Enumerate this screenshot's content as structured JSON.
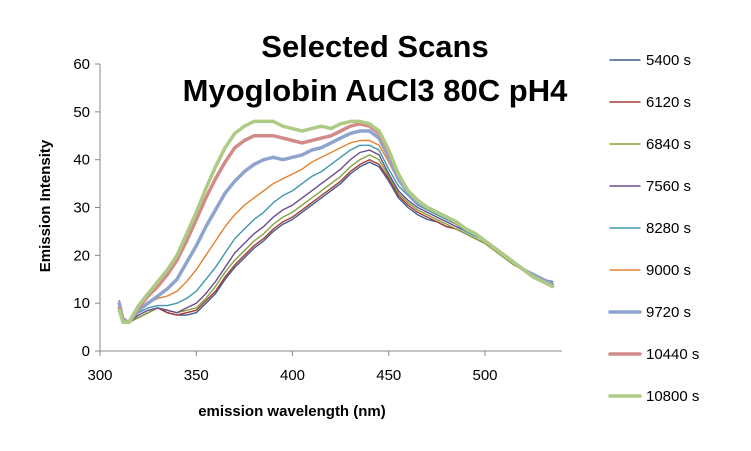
{
  "chart_data": {
    "type": "line",
    "title_lines": [
      "Selected Scans",
      "Myoglobin AuCl3 80C pH4"
    ],
    "xlabel": "emission wavelength (nm)",
    "ylabel": "Emission Intensity",
    "xlim": [
      300,
      540
    ],
    "ylim": [
      0,
      60
    ],
    "x_ticks": [
      300,
      350,
      400,
      450,
      500
    ],
    "y_ticks": [
      0,
      10,
      20,
      30,
      40,
      50,
      60
    ],
    "grid": false,
    "legend_position": "right",
    "x": [
      310,
      312,
      315,
      320,
      325,
      330,
      335,
      340,
      345,
      350,
      355,
      360,
      365,
      370,
      375,
      380,
      385,
      390,
      395,
      400,
      405,
      410,
      415,
      420,
      425,
      430,
      435,
      440,
      445,
      450,
      455,
      460,
      465,
      470,
      475,
      480,
      485,
      490,
      495,
      500,
      505,
      510,
      515,
      520,
      525,
      530,
      535
    ],
    "series": [
      {
        "name": "5400 s",
        "color": "#3F5E8F",
        "values": [
          10.5,
          7,
          6,
          7,
          8,
          9,
          8,
          7.5,
          7.5,
          8,
          10,
          12,
          15,
          17.5,
          19.5,
          21.5,
          23,
          25,
          26.5,
          27.5,
          29,
          30.5,
          32,
          33.5,
          35,
          37,
          38.5,
          39.5,
          38.5,
          35.5,
          32,
          30,
          28.5,
          27.5,
          27,
          26,
          25.5,
          24.5,
          23.5,
          22.5,
          21,
          19.5,
          18,
          17,
          16,
          15,
          14.5
        ]
      },
      {
        "name": "6120 s",
        "color": "#A53B38",
        "values": [
          10.5,
          7,
          6,
          7,
          8,
          9,
          8,
          7.5,
          8,
          8.5,
          10.5,
          12.5,
          15.5,
          18,
          20,
          22,
          23.5,
          25.5,
          27,
          28,
          29.5,
          31,
          32.5,
          34,
          35.5,
          37.5,
          39,
          40,
          39,
          36,
          32.5,
          30.5,
          29,
          28,
          27,
          26,
          25.5,
          24.5,
          23.5,
          22.5,
          21,
          19.5,
          18,
          17,
          16,
          15,
          14
        ]
      },
      {
        "name": "6840 s",
        "color": "#86A23C",
        "values": [
          10.5,
          7,
          6,
          7,
          8,
          9,
          8.5,
          8,
          8.5,
          9,
          11,
          13.5,
          16.5,
          19,
          21,
          23,
          24.5,
          26.5,
          28,
          29,
          30.5,
          32,
          33.5,
          35,
          36.5,
          38.5,
          40,
          41,
          40,
          36.5,
          33,
          31,
          29.5,
          28.5,
          27.5,
          26.5,
          25.5,
          24.5,
          23.5,
          22.5,
          21,
          19.5,
          18,
          17,
          16,
          15,
          14
        ]
      },
      {
        "name": "7560 s",
        "color": "#6B4D8F",
        "values": [
          10.5,
          7,
          6,
          7.5,
          8.5,
          9,
          8.5,
          8,
          9,
          10,
          12,
          14.5,
          17.5,
          20.5,
          22.5,
          24.5,
          26,
          28,
          29.5,
          30.5,
          32,
          33.5,
          35,
          36.5,
          38,
          40,
          41.5,
          42,
          41,
          37,
          33.5,
          31.5,
          30,
          29,
          28,
          27,
          26,
          25,
          24,
          23,
          21.5,
          20,
          18.5,
          17,
          16,
          15,
          14
        ]
      },
      {
        "name": "8280 s",
        "color": "#3E97AD",
        "values": [
          10.5,
          7,
          6,
          8,
          9,
          9.5,
          9.5,
          10,
          11,
          12.5,
          15,
          17.5,
          20.5,
          23.5,
          25.5,
          27.5,
          29,
          31,
          32.5,
          33.5,
          35,
          36.5,
          37.5,
          39,
          40.5,
          42,
          43,
          43,
          42,
          38,
          34.5,
          32.5,
          30.5,
          29.5,
          28.5,
          27.5,
          26.5,
          25,
          24,
          23,
          21.5,
          20,
          18.5,
          17,
          16,
          15,
          14
        ]
      },
      {
        "name": "9000 s",
        "color": "#E38230",
        "values": [
          10.5,
          7,
          6,
          8.5,
          10,
          11,
          11.5,
          12.5,
          14.5,
          17,
          20,
          23,
          26,
          28.5,
          30.5,
          32,
          33.5,
          35,
          36,
          37,
          38,
          39.5,
          40.5,
          41.5,
          42.5,
          43.5,
          44,
          44,
          43,
          39.5,
          35.5,
          33,
          31,
          30,
          29,
          28,
          26.5,
          25.5,
          24.5,
          23,
          21.5,
          20,
          18.5,
          17,
          16,
          15,
          14
        ]
      },
      {
        "name": "9720 s",
        "color": "#8EA4CF",
        "values": [
          10,
          6.5,
          6,
          8.5,
          10,
          11.5,
          13,
          15,
          18.5,
          22,
          26,
          29.5,
          33,
          35.5,
          37.5,
          39,
          40,
          40.5,
          40,
          40.5,
          41,
          42,
          42.5,
          43.5,
          44.5,
          45.5,
          46,
          46,
          44.5,
          40.5,
          36,
          33,
          31,
          30,
          29,
          28,
          27,
          25.5,
          24.5,
          23,
          21.5,
          20,
          18.5,
          17,
          16,
          15,
          14
        ]
      },
      {
        "name": "10440 s",
        "color": "#D28B89",
        "values": [
          9,
          6,
          6,
          9,
          11.5,
          13.5,
          16,
          19,
          23,
          27.5,
          32,
          36,
          39.5,
          42.5,
          44,
          45,
          45,
          45,
          44.5,
          44,
          43.5,
          44,
          44.5,
          45,
          46,
          47,
          47.5,
          47,
          45.5,
          41.5,
          37,
          33.5,
          31.5,
          30,
          29,
          28,
          27,
          25.5,
          24.5,
          23,
          21.5,
          20,
          18.5,
          17,
          15.5,
          14.5,
          13.5
        ]
      },
      {
        "name": "10800 s",
        "color": "#AECB85",
        "values": [
          8.5,
          6,
          6,
          9.5,
          12,
          14.5,
          17,
          20,
          24.5,
          29,
          34,
          38.5,
          42.5,
          45.5,
          47,
          48,
          48,
          48,
          47,
          46.5,
          46,
          46.5,
          47,
          46.5,
          47.5,
          48,
          48,
          47.5,
          46,
          42,
          37,
          33.5,
          31.5,
          30,
          29,
          28,
          27,
          25.5,
          24.5,
          23,
          21.5,
          20,
          18.5,
          17,
          15.5,
          14.5,
          13.5
        ]
      }
    ]
  }
}
